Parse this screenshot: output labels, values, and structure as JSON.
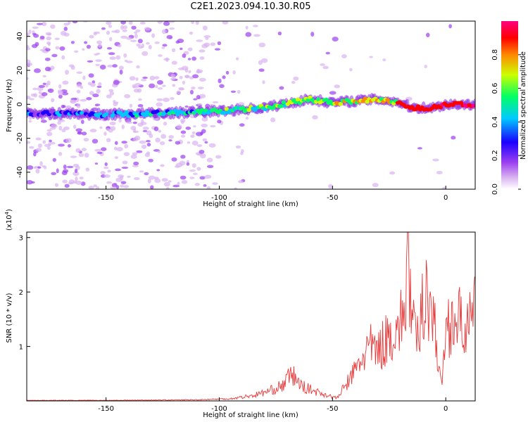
{
  "title": "C2E1.2023.094.10.30.R05",
  "colors": {
    "snr_line": "#e83a3a",
    "colormap": [
      "#ffffff",
      "#d9b3f0",
      "#9b3ff0",
      "#1a00ff",
      "#00c8ff",
      "#00ff66",
      "#ccff00",
      "#ff8800",
      "#ff0000",
      "#ff0080"
    ]
  },
  "chart_data": [
    {
      "type": "heatmap",
      "title": "C2E1.2023.094.10.30.R05",
      "xlabel": "Height of straight line (km)",
      "ylabel": "Frequency (Hz)",
      "xlim": [
        -185,
        13
      ],
      "ylim": [
        -50,
        49
      ],
      "xticks": [
        -150,
        -100,
        -50,
        0
      ],
      "yticks": [
        -40,
        -20,
        0,
        20,
        40
      ],
      "grid": false,
      "ridge": {
        "description_points": [
          {
            "x": -185,
            "y": -5
          },
          {
            "x": -150,
            "y": -6
          },
          {
            "x": -120,
            "y": -5
          },
          {
            "x": -100,
            "y": -4
          },
          {
            "x": -80,
            "y": -2
          },
          {
            "x": -60,
            "y": 3
          },
          {
            "x": -50,
            "y": 1
          },
          {
            "x": -40,
            "y": 2
          },
          {
            "x": -30,
            "y": 3
          },
          {
            "x": -20,
            "y": 1
          },
          {
            "x": -15,
            "y": -2
          },
          {
            "x": -5,
            "y": -2
          },
          {
            "x": 0,
            "y": 0
          },
          {
            "x": 13,
            "y": 0
          }
        ],
        "peak_amplitude": 1.0
      },
      "colorbar": {
        "label": "Normalized spectral amplitude",
        "range": [
          0,
          1
        ],
        "ticks": [
          0.0,
          0.2,
          0.4,
          0.6,
          0.8
        ]
      }
    },
    {
      "type": "line",
      "xlabel": "Height of straight line (km)",
      "ylabel": "SNR (10 * v/v)",
      "multiplier_label": "(x10",
      "multiplier_exp": "4",
      "xlim": [
        -185,
        13
      ],
      "ylim": [
        0,
        3.1
      ],
      "xticks": [
        -150,
        -100,
        -50,
        0
      ],
      "yticks": [
        1,
        2,
        3
      ],
      "grid": false,
      "series": [
        {
          "values_description": "SNR in units of 1e4",
          "x": [
            -185,
            -150,
            -110,
            -95,
            -85,
            -78,
            -72,
            -68,
            -64,
            -58,
            -52,
            -48,
            -44,
            -40,
            -36,
            -34,
            -30,
            -26,
            -22,
            -18,
            -17,
            -15,
            -12,
            -9,
            -5,
            -2,
            0,
            3,
            6,
            10,
            13
          ],
          "y": [
            0.01,
            0.01,
            0.02,
            0.04,
            0.1,
            0.18,
            0.28,
            0.5,
            0.28,
            0.18,
            0.1,
            0.05,
            0.3,
            0.55,
            0.85,
            1.0,
            0.9,
            1.15,
            1.3,
            1.55,
            3.1,
            1.35,
            1.1,
            2.2,
            1.4,
            0.25,
            1.3,
            1.55,
            1.45,
            1.35,
            1.6
          ]
        }
      ]
    }
  ]
}
